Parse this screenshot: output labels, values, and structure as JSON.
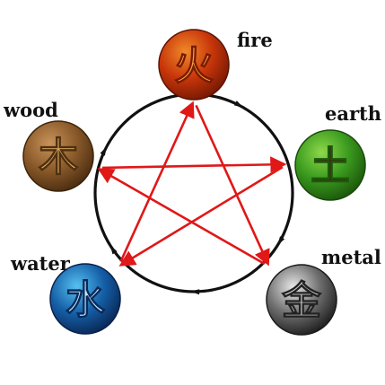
{
  "elements": {
    "fire": {
      "label": "fire",
      "glyph": "火",
      "base": "#c8360a",
      "light": "#f08a2a",
      "dark": "#7a1a04",
      "glyph_color": "#f3a53a"
    },
    "earth": {
      "label": "earth",
      "glyph": "土",
      "base": "#3a9a1e",
      "light": "#8fd84a",
      "dark": "#1d5a0c",
      "glyph_color": "#3e2a10"
    },
    "metal": {
      "label": "metal",
      "glyph": "金",
      "base": "#6e6e6e",
      "light": "#e8e8e8",
      "dark": "#222222",
      "glyph_color": "#dcdcdc"
    },
    "water": {
      "label": "water",
      "glyph": "水",
      "base": "#1560a8",
      "light": "#57c0f0",
      "dark": "#0a2a5a",
      "glyph_color": "#bfe8ff"
    },
    "wood": {
      "label": "wood",
      "glyph": "木",
      "base": "#8a5a2a",
      "light": "#c8935a",
      "dark": "#4e2f12",
      "glyph_color": "#e0b060"
    }
  },
  "colors": {
    "cycle": "#111111",
    "star": "#e01818"
  }
}
